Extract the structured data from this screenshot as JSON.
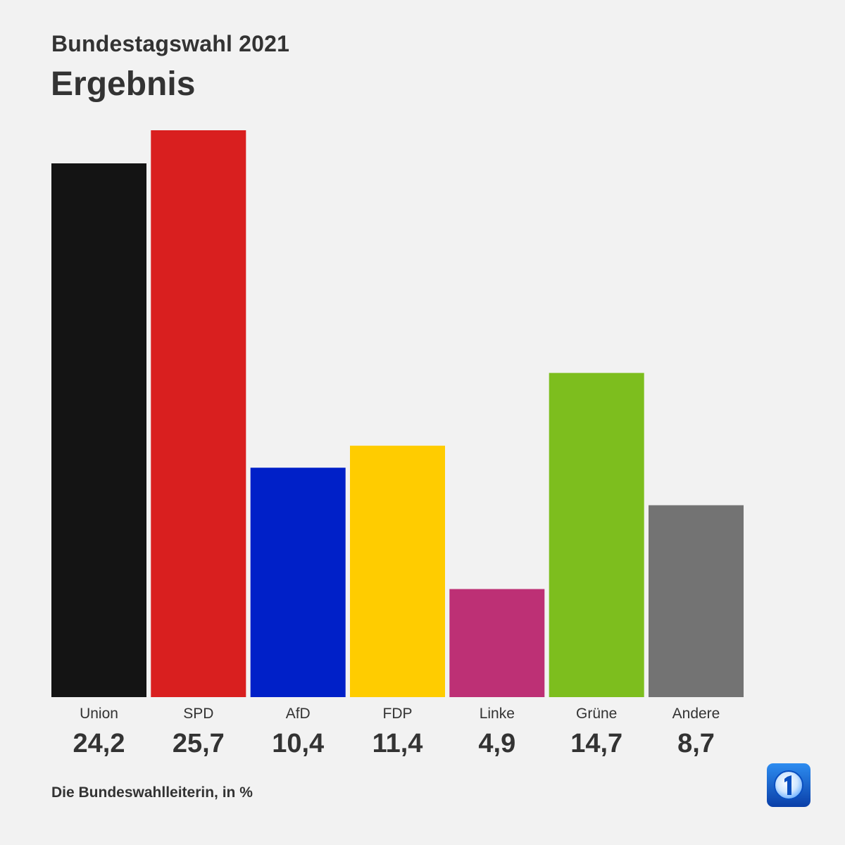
{
  "header": {
    "subtitle": "Bundestagswahl 2021",
    "title": "Ergebnis"
  },
  "footer": {
    "source": "Die Bundeswahlleiterin, in %"
  },
  "logo": {
    "icon": "tagesschau-1-logo-icon",
    "accent": "#0a5fd6"
  },
  "chart_data": {
    "type": "bar",
    "title": "Ergebnis",
    "subtitle": "Bundestagswahl 2021",
    "categories": [
      "Union",
      "SPD",
      "AfD",
      "FDP",
      "Linke",
      "Grüne",
      "Andere"
    ],
    "values": [
      24.2,
      25.7,
      10.4,
      11.4,
      4.9,
      14.7,
      8.7
    ],
    "value_labels": [
      "24,2",
      "25,7",
      "10,4",
      "11,4",
      "4,9",
      "14,7",
      "8,7"
    ],
    "colors": [
      "#141414",
      "#d91f1f",
      "#0020c8",
      "#ffcc00",
      "#bd3075",
      "#7dbe1e",
      "#737373"
    ],
    "xlabel": "",
    "ylabel": "",
    "ylim": [
      0,
      25.7
    ],
    "grid": false,
    "legend": "none"
  }
}
